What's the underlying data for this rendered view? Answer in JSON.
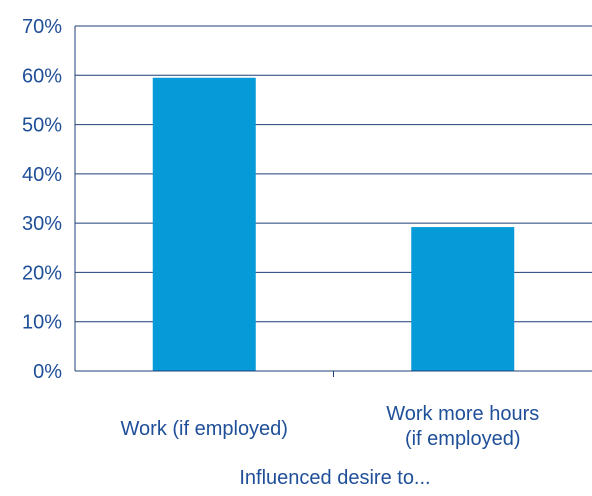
{
  "colors": {
    "bar": "#069ad8",
    "axis": "#1f3f7a",
    "text": "#1f4f99"
  },
  "chart_data": {
    "type": "bar",
    "title": "",
    "xlabel": "Influenced desire to...",
    "ylabel": "",
    "categories": [
      [
        "Work (if employed)"
      ],
      [
        "Work more hours",
        "(if employed)"
      ]
    ],
    "values": [
      59.5,
      29.2
    ],
    "unit": "%",
    "ylim": [
      0,
      70
    ],
    "yticks": [
      "0%",
      "10%",
      "20%",
      "30%",
      "40%",
      "50%",
      "60%",
      "70%"
    ],
    "grid": "horizontal",
    "legend": "none"
  }
}
